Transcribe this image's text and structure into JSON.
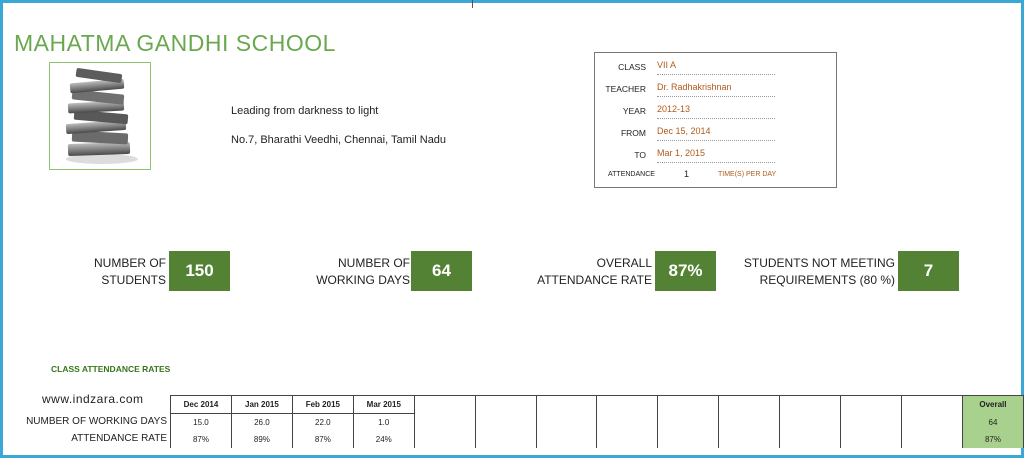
{
  "school": {
    "name": "MAHATMA GANDHI SCHOOL",
    "tagline": "Leading from darkness to light",
    "address": "No.7, Bharathi Veedhi, Chennai, Tamil Nadu"
  },
  "info": {
    "class_label": "CLASS",
    "class_value": "VII A",
    "teacher_label": "TEACHER",
    "teacher_value": "Dr. Radhakrishnan",
    "year_label": "YEAR",
    "year_value": "2012-13",
    "from_label": "FROM",
    "from_value": "Dec 15, 2014",
    "to_label": "TO",
    "to_value": "Mar 1, 2015",
    "attendance_label": "ATTENDANCE",
    "attendance_value": "1",
    "attendance_unit": "TIME(S) PER DAY"
  },
  "kpis": {
    "students_line1": "NUMBER OF",
    "students_line2": "STUDENTS",
    "students_value": "150",
    "days_line1": "NUMBER OF",
    "days_line2": "WORKING DAYS",
    "days_value": "64",
    "rate_line1": "OVERALL",
    "rate_line2": "ATTENDANCE RATE",
    "rate_value": "87%",
    "notmeeting_line1": "STUDENTS NOT MEETING",
    "notmeeting_line2": "REQUIREMENTS (80 %)",
    "notmeeting_value": "7"
  },
  "section_title": "CLASS ATTENDANCE RATES",
  "website": "www.indzara.com",
  "table": {
    "row_labels": [
      "NUMBER OF WORKING DAYS",
      "ATTENDANCE RATE"
    ],
    "months": [
      "Dec 2014",
      "Jan 2015",
      "Feb 2015",
      "Mar 2015"
    ],
    "working_days": [
      "15.0",
      "26.0",
      "22.0",
      "1.0"
    ],
    "attendance_rate": [
      "87%",
      "89%",
      "87%",
      "24%"
    ],
    "overall_label": "Overall",
    "overall_days": "64",
    "overall_rate": "87%"
  },
  "colors": {
    "school_name": "#6aa84f",
    "kpi_fill": "#548235",
    "overall_fill": "#a9d18e",
    "info_value": "#b05a1c",
    "frame": "#3aa7d6"
  },
  "icons": {
    "logo": "books-stack-icon"
  }
}
